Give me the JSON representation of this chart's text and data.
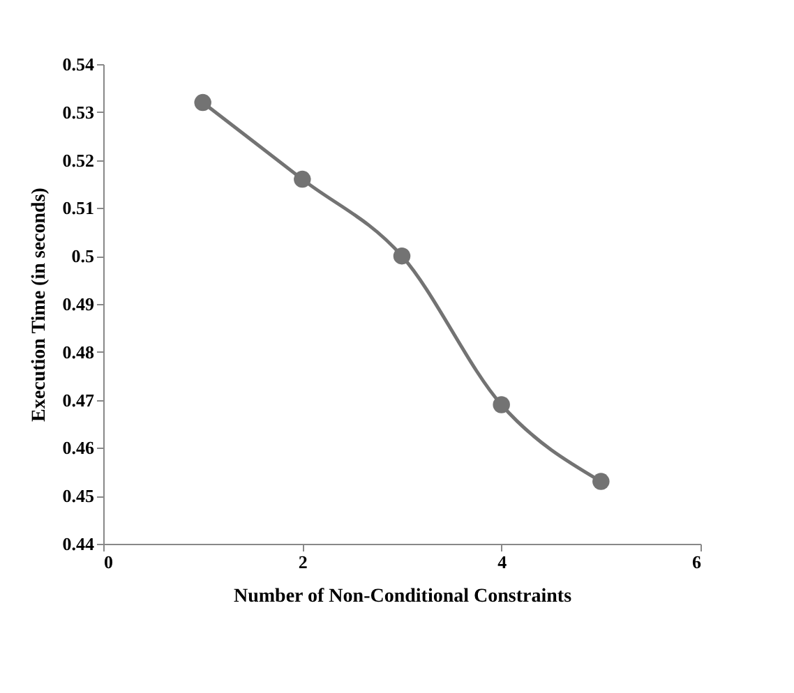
{
  "chart_data": {
    "type": "line",
    "xlabel": "Number of Non-Conditional Constraints",
    "ylabel": "Execution Time (in seconds)",
    "x": [
      1,
      2,
      3,
      4,
      5
    ],
    "series": [
      {
        "color": "#737373",
        "values": [
          0.532,
          0.516,
          0.5,
          0.469,
          0.453
        ]
      }
    ],
    "xlim": [
      0,
      6
    ],
    "xticks": [
      0,
      2,
      4,
      6
    ],
    "ylim": [
      0.44,
      0.54
    ],
    "yticks": [
      0.44,
      0.45,
      0.46,
      0.47,
      0.48,
      0.49,
      0.5,
      0.51,
      0.52,
      0.53,
      0.54
    ],
    "grid": false,
    "marker": "circle",
    "line_style": "solid"
  }
}
